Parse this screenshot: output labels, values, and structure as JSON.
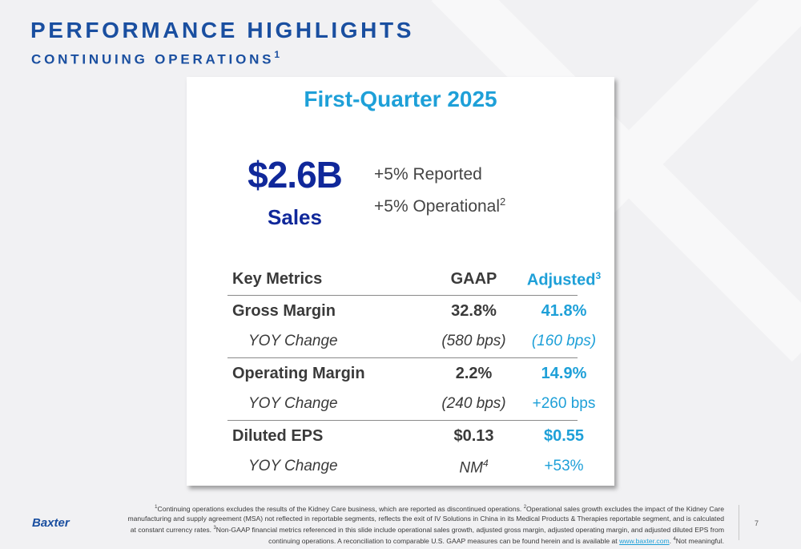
{
  "slide": {
    "title": "PERFORMANCE HIGHLIGHTS",
    "subtitle": "CONTINUING OPERATIONS",
    "subtitle_sup": "1",
    "page_number": "7",
    "logo_text": "Baxter"
  },
  "card": {
    "title": "First-Quarter 2025",
    "sales_value": "$2.6B",
    "sales_label": "Sales",
    "growth_reported": "+5% Reported",
    "growth_operational": "+5% Operational",
    "growth_operational_sup": "2"
  },
  "metrics": {
    "header": {
      "label": "Key Metrics",
      "gaap": "GAAP",
      "adjusted": "Adjusted",
      "adjusted_sup": "3"
    },
    "gross_margin": {
      "label": "Gross Margin",
      "gaap": "32.8%",
      "adjusted": "41.8%"
    },
    "gross_margin_yoy": {
      "label": "YOY Change",
      "gaap": "(580 bps)",
      "adjusted": "(160 bps)"
    },
    "operating_margin": {
      "label": "Operating Margin",
      "gaap": "2.2%",
      "adjusted": "14.9%"
    },
    "operating_margin_yoy": {
      "label": "YOY Change",
      "gaap": "(240 bps)",
      "adjusted": "+260 bps"
    },
    "diluted_eps": {
      "label": "Diluted EPS",
      "gaap": "$0.13",
      "adjusted": "$0.55"
    },
    "diluted_eps_yoy": {
      "label": "YOY Change",
      "gaap": "NM",
      "gaap_sup": "4",
      "adjusted": "+53%"
    }
  },
  "footnote": {
    "fn1_num": "1",
    "fn1": "Continuing operations excludes the results of the Kidney Care business, which are reported as discontinued operations. ",
    "fn2_num": "2",
    "fn2": "Operational sales growth excludes the impact of the Kidney Care manufacturing and supply agreement (MSA) not reflected in reportable segments, reflects the exit of IV Solutions in China in its Medical Products & Therapies reportable segment, and is calculated at constant currency rates. ",
    "fn3_num": "3",
    "fn3": "Non-GAAP financial metrics referenced in this slide include operational sales growth, adjusted gross margin, adjusted operating margin, and adjusted diluted EPS from continuing operations. A reconciliation to comparable U.S. GAAP measures can be found herein and is available at ",
    "link": "www.baxter.com",
    "after_link": ". ",
    "fn4_num": "4",
    "fn4": "Not meaningful."
  },
  "colors": {
    "brand_blue": "#1a4fa0",
    "accent_cyan": "#1ea0d8",
    "dark_blue": "#10289a"
  }
}
